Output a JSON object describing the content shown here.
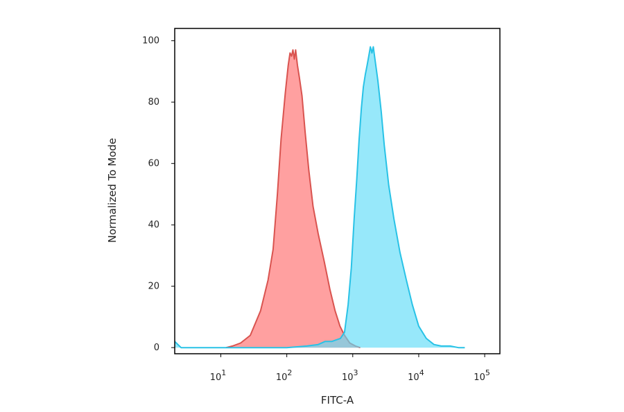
{
  "chart_data": {
    "type": "area",
    "xlabel": "FITC-A",
    "ylabel": "Normalized To Mode",
    "x_scale": "log",
    "xlim": [
      2,
      170000
    ],
    "ylim": [
      -2,
      104
    ],
    "x_ticks": [
      {
        "value": 10,
        "base": "10",
        "exp": "1"
      },
      {
        "value": 100,
        "base": "10",
        "exp": "2"
      },
      {
        "value": 1000,
        "base": "10",
        "exp": "3"
      },
      {
        "value": 10000,
        "base": "10",
        "exp": "4"
      },
      {
        "value": 100000,
        "base": "10",
        "exp": "5"
      }
    ],
    "y_ticks": [
      {
        "value": 0,
        "label": "0"
      },
      {
        "value": 20,
        "label": "20"
      },
      {
        "value": 40,
        "label": "40"
      },
      {
        "value": 60,
        "label": "60"
      },
      {
        "value": 80,
        "label": "80"
      },
      {
        "value": 100,
        "label": "100"
      }
    ],
    "series": [
      {
        "color": "#d9534f",
        "fill": "#ff8080",
        "x": [
          12,
          15,
          20,
          28,
          40,
          52,
          62,
          72,
          82,
          95,
          105,
          112,
          118,
          124,
          130,
          136,
          145,
          155,
          170,
          190,
          215,
          250,
          300,
          370,
          450,
          540,
          640,
          750,
          900,
          1100,
          1300
        ],
        "y": [
          0,
          0.5,
          1.5,
          4,
          12,
          22,
          32,
          50,
          68,
          83,
          92,
          96,
          95,
          97,
          94,
          97,
          92,
          88,
          82,
          70,
          58,
          46,
          37,
          28,
          19,
          12,
          7,
          4,
          1.5,
          0.5,
          0
        ]
      },
      {
        "color": "#28c2e6",
        "fill": "#5fdcf7",
        "x": [
          2,
          2.5,
          3.5,
          5,
          100,
          200,
          300,
          380,
          480,
          560,
          650,
          750,
          850,
          950,
          1050,
          1150,
          1250,
          1350,
          1450,
          1550,
          1650,
          1750,
          1850,
          1950,
          2050,
          2200,
          2400,
          2700,
          3000,
          3500,
          4200,
          5200,
          6500,
          8000,
          10000,
          13000,
          17000,
          22000,
          30000,
          40000,
          50000
        ],
        "y": [
          2,
          0,
          0,
          0,
          0,
          0.5,
          1,
          2,
          2,
          2.5,
          3,
          5,
          14,
          26,
          42,
          55,
          68,
          78,
          85,
          89,
          92,
          95,
          98,
          96,
          98,
          93,
          87,
          77,
          66,
          53,
          42,
          31,
          22,
          14,
          7,
          3,
          1,
          0.5,
          0.5,
          0,
          0
        ]
      }
    ],
    "overlap_color": "#7a9aa6",
    "grid": false,
    "legend": "none"
  }
}
